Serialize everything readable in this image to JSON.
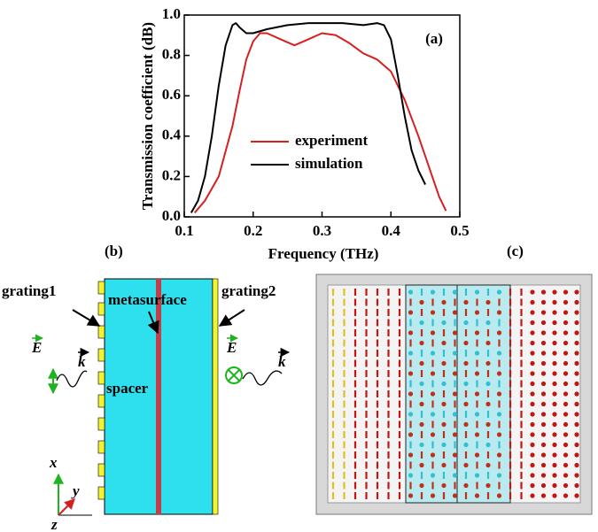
{
  "chart_data": {
    "type": "line",
    "ylabel": "Transmission coefficient (dB)",
    "xlabel": "Frequency (THz)",
    "annotation": "(a)",
    "xlim": [
      0.1,
      0.5
    ],
    "xticks": [
      0.1,
      0.2,
      0.3,
      0.4,
      0.5
    ],
    "ylim": [
      0,
      1.0
    ],
    "yticks": [
      {
        "value": 0,
        "label": "0.0"
      },
      0.2,
      0.4,
      0.6,
      0.8,
      {
        "value": 1.0,
        "label": "1.0"
      }
    ],
    "legend": "center",
    "series": [
      {
        "name": "experiment",
        "color": "#d62020",
        "x": [
          0.115,
          0.13,
          0.15,
          0.17,
          0.18,
          0.19,
          0.2,
          0.21,
          0.22,
          0.24,
          0.26,
          0.28,
          0.3,
          0.32,
          0.34,
          0.36,
          0.38,
          0.4,
          0.42,
          0.44,
          0.45,
          0.46,
          0.47,
          0.48
        ],
        "values": [
          0.02,
          0.08,
          0.2,
          0.45,
          0.62,
          0.78,
          0.87,
          0.91,
          0.91,
          0.88,
          0.85,
          0.88,
          0.91,
          0.9,
          0.86,
          0.81,
          0.78,
          0.72,
          0.58,
          0.4,
          0.3,
          0.2,
          0.1,
          0.03
        ]
      },
      {
        "name": "simulation",
        "color": "#000000",
        "x": [
          0.11,
          0.12,
          0.13,
          0.14,
          0.15,
          0.16,
          0.17,
          0.175,
          0.18,
          0.19,
          0.2,
          0.22,
          0.25,
          0.28,
          0.3,
          0.33,
          0.36,
          0.38,
          0.39,
          0.4,
          0.41,
          0.42,
          0.43,
          0.44,
          0.45
        ],
        "values": [
          0.02,
          0.08,
          0.2,
          0.4,
          0.65,
          0.85,
          0.95,
          0.96,
          0.94,
          0.91,
          0.91,
          0.93,
          0.95,
          0.96,
          0.96,
          0.96,
          0.95,
          0.96,
          0.95,
          0.88,
          0.7,
          0.5,
          0.33,
          0.23,
          0.16
        ]
      }
    ]
  },
  "diagram": {
    "label": "(b)",
    "grating_left": "grating1",
    "grating_right": "grating2",
    "metasurface": "metasurface",
    "spacer": "spacer",
    "field_left": "E",
    "wave_left": "k",
    "field_right": "E",
    "wave_right": "k",
    "axis_x": "x",
    "axis_y": "y",
    "axis_z": "z"
  },
  "simulation": {
    "label": "(c)"
  }
}
